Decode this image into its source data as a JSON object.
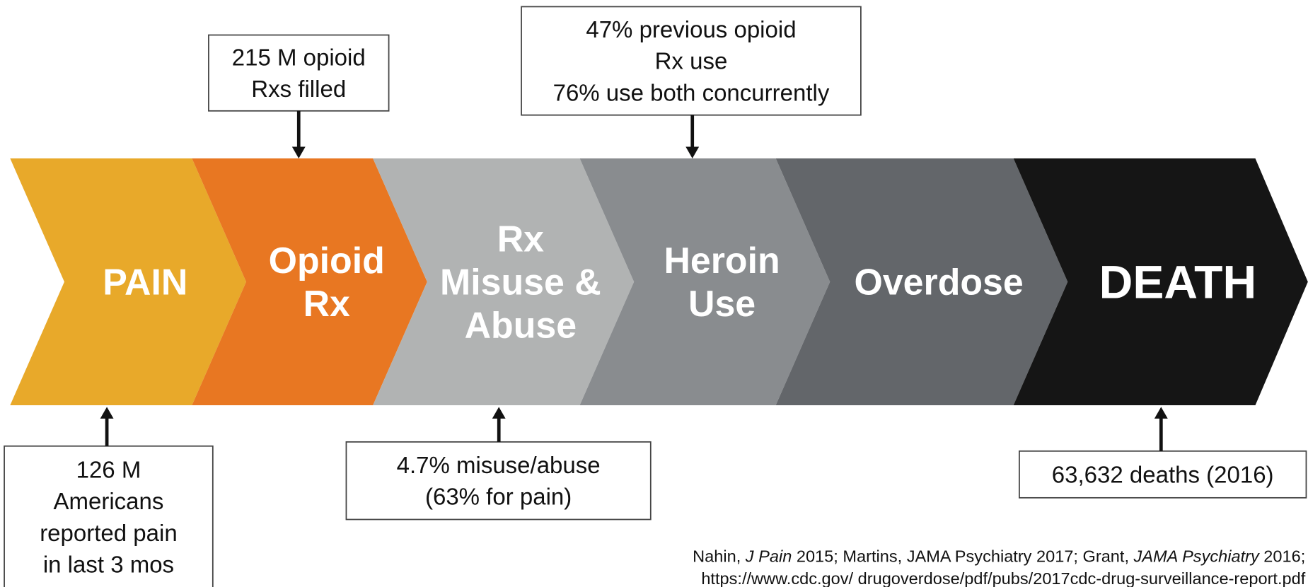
{
  "stages": [
    {
      "label": [
        "PAIN"
      ],
      "color": "#E8A92A"
    },
    {
      "label": [
        "Opioid",
        "Rx"
      ],
      "color": "#E87722"
    },
    {
      "label": [
        "Rx",
        "Misuse &",
        "Abuse"
      ],
      "color": "#B1B3B3"
    },
    {
      "label": [
        "Heroin",
        "Use"
      ],
      "color": "#898C8F"
    },
    {
      "label": [
        "Overdose"
      ],
      "color": "#63666A"
    },
    {
      "label": [
        "DEATH"
      ],
      "color": "#151515"
    }
  ],
  "callouts": [
    {
      "lines": [
        "215 M opioid",
        "Rxs filled"
      ]
    },
    {
      "lines": [
        "47% previous opioid",
        "Rx use",
        "76% use both concurrently"
      ]
    },
    {
      "lines": [
        "126 M",
        "Americans",
        "reported pain",
        "in last 3 mos"
      ]
    },
    {
      "lines": [
        "4.7% misuse/abuse",
        "(63% for pain)"
      ]
    },
    {
      "lines": [
        "63,632 deaths (2016)"
      ]
    }
  ],
  "citation": [
    [
      {
        "text": "Nahin, ",
        "italic": false
      },
      {
        "text": "J Pain",
        "italic": true
      },
      {
        "text": " 2015; Martins, JAMA Psychiatry 2017; Grant, ",
        "italic": false
      },
      {
        "text": "JAMA Psychiatry",
        "italic": true
      },
      {
        "text": " 2016;",
        "italic": false
      }
    ],
    [
      {
        "text": "https://www.cdc.gov/ drugoverdose/pdf/pubs/2017cdc-drug-surveillance-report.pdf",
        "italic": false
      }
    ]
  ]
}
